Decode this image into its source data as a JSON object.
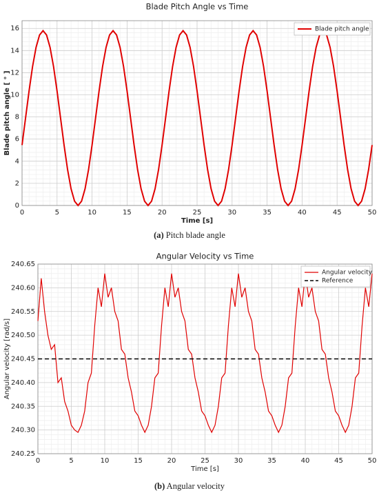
{
  "chart_data": [
    {
      "type": "line",
      "title": "Blade Pitch Angle vs Time",
      "xlabel": "Time [s]",
      "ylabel": "Blade pitch angle [ ° ]",
      "caption_label": "(a)",
      "caption": "Pitch blade angle",
      "xlim": [
        0,
        50
      ],
      "xticks": [
        0,
        5,
        10,
        15,
        20,
        25,
        30,
        35,
        40,
        45,
        50
      ],
      "ylim": [
        0,
        16.7
      ],
      "yticks": [
        0,
        2,
        4,
        6,
        8,
        10,
        12,
        14,
        16
      ],
      "grid": true,
      "legend": "upper right",
      "x": [
        0,
        0.5,
        1,
        1.5,
        2,
        2.5,
        3,
        3.5,
        4,
        4.5,
        5,
        5.5,
        6,
        6.5,
        7,
        7.5,
        8,
        8.5,
        9,
        9.5,
        10,
        10.5,
        11,
        11.5,
        12,
        12.5,
        13,
        13.5,
        14,
        14.5,
        15,
        15.5,
        16,
        16.5,
        17,
        17.5,
        18,
        18.5,
        19,
        19.5,
        20,
        20.5,
        21,
        21.5,
        22,
        22.5,
        23,
        23.5,
        24,
        24.5,
        25,
        25.5,
        26,
        26.5,
        27,
        27.5,
        28,
        28.5,
        29,
        29.5,
        30,
        30.5,
        31,
        31.5,
        32,
        32.5,
        33,
        33.5,
        34,
        34.5,
        35,
        35.5,
        36,
        36.5,
        37,
        37.5,
        38,
        38.5,
        39,
        39.5,
        40,
        40.5,
        41,
        41.5,
        42,
        42.5,
        43,
        43.5,
        44,
        44.5,
        45,
        45.5,
        46,
        46.5,
        47,
        47.5,
        48,
        48.5,
        49,
        49.5,
        50
      ],
      "series": [
        {
          "name": "Blade pitch angle",
          "color": "#e00000",
          "width": 2,
          "values": [
            5.46,
            7.9,
            10.34,
            12.55,
            14.29,
            15.41,
            15.8,
            15.41,
            14.29,
            12.55,
            10.34,
            7.9,
            5.46,
            3.25,
            1.51,
            0.39,
            0,
            0.39,
            1.51,
            3.25,
            5.46,
            7.9,
            10.34,
            12.55,
            14.29,
            15.41,
            15.8,
            15.41,
            14.29,
            12.55,
            10.34,
            7.9,
            5.46,
            3.25,
            1.51,
            0.39,
            0,
            0.39,
            1.51,
            3.25,
            5.46,
            7.9,
            10.34,
            12.55,
            14.29,
            15.41,
            15.8,
            15.41,
            14.29,
            12.55,
            10.34,
            7.9,
            5.46,
            3.25,
            1.51,
            0.39,
            0,
            0.39,
            1.51,
            3.25,
            5.46,
            7.9,
            10.34,
            12.55,
            14.29,
            15.41,
            15.8,
            15.41,
            14.29,
            12.55,
            10.34,
            7.9,
            5.46,
            3.25,
            1.51,
            0.39,
            0,
            0.39,
            1.51,
            3.25,
            5.46,
            7.9,
            10.34,
            12.55,
            14.29,
            15.41,
            15.8,
            15.41,
            14.29,
            12.55,
            10.34,
            7.9,
            5.46,
            3.25,
            1.51,
            0.39,
            0,
            0.39,
            1.51,
            3.25,
            5.46
          ]
        }
      ]
    },
    {
      "type": "line",
      "title": "Angular Velocity vs Time",
      "xlabel": "Time [s]",
      "ylabel": "Angular velocity [rad/s]",
      "caption_label": "(b)",
      "caption": "Angular velocity",
      "xlim": [
        0,
        50
      ],
      "xticks": [
        0,
        5,
        10,
        15,
        20,
        25,
        30,
        35,
        40,
        45,
        50
      ],
      "ylim": [
        240.25,
        240.65
      ],
      "yticks": [
        240.25,
        {
          "value": 240.3,
          "label": "240.30"
        },
        240.35,
        {
          "value": 240.4,
          "label": "240.40"
        },
        240.45,
        {
          "value": 240.5,
          "label": "240.50"
        },
        240.55,
        {
          "value": 240.6,
          "label": "240.60"
        },
        240.65
      ],
      "grid": true,
      "legend": "upper right",
      "x": [
        0,
        0.5,
        1,
        1.5,
        2,
        2.5,
        3,
        3.5,
        4,
        4.5,
        5,
        5.5,
        6,
        6.5,
        7,
        7.5,
        8,
        8.5,
        9,
        9.5,
        10,
        10.5,
        11,
        11.5,
        12,
        12.5,
        13,
        13.5,
        14,
        14.5,
        15,
        15.5,
        16,
        16.5,
        17,
        17.5,
        18,
        18.5,
        19,
        19.5,
        20,
        20.5,
        21,
        21.5,
        22,
        22.5,
        23,
        23.5,
        24,
        24.5,
        25,
        25.5,
        26,
        26.5,
        27,
        27.5,
        28,
        28.5,
        29,
        29.5,
        30,
        30.5,
        31,
        31.5,
        32,
        32.5,
        33,
        33.5,
        34,
        34.5,
        35,
        35.5,
        36,
        36.5,
        37,
        37.5,
        38,
        38.5,
        39,
        39.5,
        40,
        40.5,
        41,
        41.5,
        42,
        42.5,
        43,
        43.5,
        44,
        44.5,
        45,
        45.5,
        46,
        46.5,
        47,
        47.5,
        48,
        48.5,
        49,
        49.5,
        50
      ],
      "series": [
        {
          "name": "Angular velocity",
          "color": "#e00000",
          "width": 1.2,
          "values": [
            240.53,
            240.62,
            240.55,
            240.5,
            240.47,
            240.48,
            240.4,
            240.41,
            240.36,
            240.34,
            240.31,
            240.3,
            240.295,
            240.31,
            240.34,
            240.4,
            240.42,
            240.52,
            240.6,
            240.56,
            240.63,
            240.58,
            240.6,
            240.55,
            240.53,
            240.47,
            240.46,
            240.41,
            240.38,
            240.34,
            240.33,
            240.31,
            240.295,
            240.31,
            240.35,
            240.41,
            240.42,
            240.52,
            240.6,
            240.56,
            240.63,
            240.58,
            240.6,
            240.55,
            240.53,
            240.47,
            240.46,
            240.41,
            240.38,
            240.34,
            240.33,
            240.31,
            240.295,
            240.31,
            240.35,
            240.41,
            240.42,
            240.52,
            240.6,
            240.56,
            240.63,
            240.58,
            240.6,
            240.55,
            240.53,
            240.47,
            240.46,
            240.41,
            240.38,
            240.34,
            240.33,
            240.31,
            240.295,
            240.31,
            240.35,
            240.41,
            240.42,
            240.52,
            240.6,
            240.56,
            240.63,
            240.58,
            240.6,
            240.55,
            240.53,
            240.47,
            240.46,
            240.41,
            240.38,
            240.34,
            240.33,
            240.31,
            240.295,
            240.31,
            240.35,
            240.41,
            240.42,
            240.52,
            240.6,
            240.56,
            240.63
          ]
        },
        {
          "name": "Reference",
          "color": "#000000",
          "width": 1.6,
          "dash": true,
          "x": [
            0,
            50
          ],
          "values": [
            240.45,
            240.45
          ]
        }
      ]
    }
  ]
}
